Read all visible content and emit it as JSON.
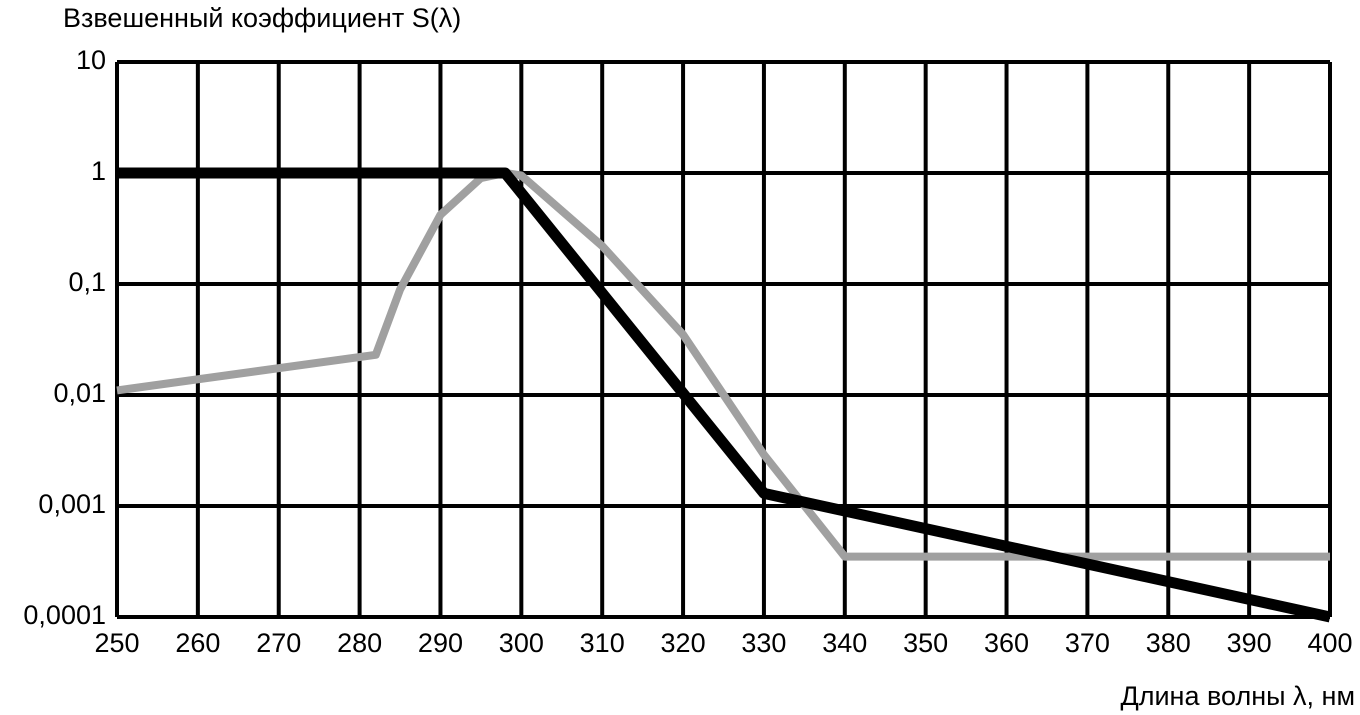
{
  "chart_data": {
    "type": "line",
    "title": "Взвешенный коэффициент S(λ)",
    "x_label": "Длина волны λ, нм",
    "xlim": [
      250,
      400
    ],
    "xticks": [
      250,
      260,
      270,
      280,
      290,
      300,
      310,
      320,
      330,
      340,
      350,
      360,
      370,
      380,
      390,
      400
    ],
    "ylim": [
      0.0001,
      10
    ],
    "yscale": "log",
    "yticks": [
      {
        "value": 0.0001,
        "label": "0,0001"
      },
      {
        "value": 0.001,
        "label": "0,001"
      },
      {
        "value": 0.01,
        "label": "0,01"
      },
      {
        "value": 0.1,
        "label": "0,1"
      },
      1,
      10
    ],
    "grid": true,
    "series": [
      {
        "color": "#a0a0a0",
        "x": [
          250,
          282,
          285,
          290,
          295,
          298,
          300,
          310,
          320,
          330,
          340,
          400
        ],
        "values": [
          0.011,
          0.023,
          0.089,
          0.42,
          0.9,
          1,
          0.95,
          0.22,
          0.035,
          0.0029,
          0.00035,
          0.00035
        ]
      },
      {
        "color": "#000000",
        "x": [
          250,
          298,
          330,
          400
        ],
        "values": [
          1,
          1,
          0.0013,
          0.0001
        ]
      }
    ]
  }
}
